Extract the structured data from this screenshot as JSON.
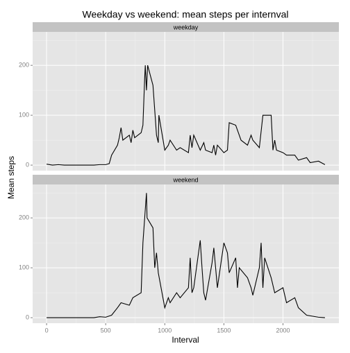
{
  "title": "Weekday vs weekend: mean steps per internval",
  "xlabel": "Interval",
  "ylabel": "Mean steps",
  "chart_data": [
    {
      "type": "line",
      "title": "weekday",
      "x": [
        0,
        50,
        100,
        150,
        200,
        300,
        400,
        450,
        500,
        530,
        550,
        600,
        615,
        630,
        645,
        700,
        715,
        730,
        745,
        800,
        815,
        830,
        835,
        845,
        855,
        900,
        915,
        930,
        945,
        950,
        1000,
        1030,
        1045,
        1100,
        1130,
        1200,
        1215,
        1230,
        1245,
        1300,
        1330,
        1345,
        1400,
        1415,
        1430,
        1445,
        1500,
        1530,
        1545,
        1600,
        1630,
        1645,
        1700,
        1730,
        1745,
        1800,
        1830,
        1900,
        1915,
        1930,
        1945,
        2000,
        2030,
        2100,
        2130,
        2200,
        2230,
        2300,
        2355
      ],
      "series": [
        {
          "color": "#000000",
          "values": [
            2,
            0,
            1,
            0,
            0,
            0,
            0,
            1,
            1,
            3,
            20,
            40,
            55,
            75,
            50,
            60,
            45,
            70,
            55,
            65,
            80,
            175,
            200,
            150,
            200,
            160,
            110,
            60,
            45,
            100,
            30,
            40,
            50,
            30,
            35,
            25,
            60,
            35,
            60,
            30,
            45,
            30,
            25,
            40,
            20,
            40,
            25,
            30,
            85,
            80,
            60,
            50,
            40,
            60,
            50,
            35,
            100,
            100,
            30,
            50,
            30,
            25,
            20,
            20,
            10,
            15,
            5,
            8,
            1
          ]
        }
      ],
      "xlim": [
        -118,
        2473
      ],
      "ylim": [
        -11,
        267
      ],
      "xticks": [
        0,
        500,
        1000,
        1500,
        2000
      ],
      "yticks": [
        0,
        100,
        200
      ],
      "xminor_ticks": [
        250,
        750,
        1250,
        1750,
        2250
      ],
      "yminor_ticks": [
        50,
        150,
        250
      ],
      "grid": true
    },
    {
      "type": "line",
      "title": "weekend",
      "x": [
        0,
        100,
        200,
        300,
        400,
        450,
        500,
        550,
        600,
        630,
        700,
        730,
        800,
        815,
        830,
        845,
        850,
        900,
        915,
        930,
        945,
        1000,
        1030,
        1045,
        1100,
        1130,
        1200,
        1215,
        1230,
        1245,
        1300,
        1315,
        1330,
        1345,
        1400,
        1415,
        1430,
        1445,
        1500,
        1530,
        1545,
        1600,
        1615,
        1630,
        1700,
        1730,
        1745,
        1800,
        1815,
        1830,
        1845,
        1900,
        1930,
        2000,
        2030,
        2100,
        2130,
        2200,
        2300,
        2355
      ],
      "series": [
        {
          "color": "#000000",
          "values": [
            0,
            0,
            0,
            0,
            0,
            2,
            1,
            5,
            20,
            30,
            25,
            40,
            50,
            150,
            200,
            250,
            200,
            180,
            100,
            130,
            90,
            20,
            40,
            30,
            50,
            40,
            60,
            120,
            50,
            60,
            155,
            100,
            50,
            35,
            110,
            140,
            100,
            60,
            150,
            130,
            90,
            120,
            60,
            100,
            80,
            60,
            45,
            100,
            150,
            60,
            120,
            80,
            50,
            60,
            30,
            40,
            20,
            5,
            1,
            0
          ]
        }
      ],
      "xlim": [
        -118,
        2473
      ],
      "ylim": [
        -11,
        267
      ],
      "xticks": [
        0,
        500,
        1000,
        1500,
        2000
      ],
      "yticks": [
        0,
        100,
        200
      ],
      "xminor_ticks": [
        250,
        750,
        1250,
        1750,
        2250
      ],
      "yminor_ticks": [
        50,
        150,
        250
      ],
      "grid": true
    }
  ]
}
